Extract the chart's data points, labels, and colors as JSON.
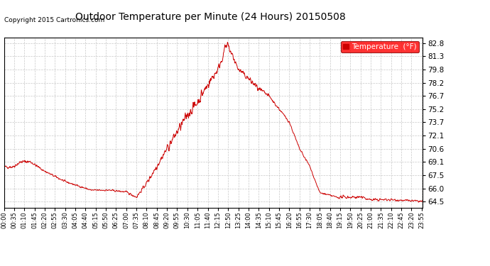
{
  "title": "Outdoor Temperature per Minute (24 Hours) 20150508",
  "copyright": "Copyright 2015 Cartronics.com",
  "legend_label": "Temperature  (°F)",
  "line_color": "#cc0000",
  "background_color": "#ffffff",
  "plot_bg_color": "#ffffff",
  "grid_color": "#c8c8c8",
  "yticks": [
    64.5,
    66.0,
    67.5,
    69.1,
    70.6,
    72.1,
    73.7,
    75.2,
    76.7,
    78.2,
    79.8,
    81.3,
    82.8
  ],
  "ymin": 63.8,
  "ymax": 83.5,
  "total_minutes": 1440,
  "xtick_interval": 35,
  "xtick_labels": [
    "00:00",
    "00:35",
    "01:10",
    "01:45",
    "02:20",
    "02:55",
    "03:30",
    "04:05",
    "04:40",
    "05:15",
    "05:50",
    "06:25",
    "07:00",
    "07:35",
    "08:10",
    "08:45",
    "09:20",
    "09:55",
    "10:30",
    "11:05",
    "11:40",
    "12:15",
    "12:50",
    "13:25",
    "14:00",
    "14:35",
    "15:10",
    "15:45",
    "16:20",
    "16:55",
    "17:30",
    "18:05",
    "18:40",
    "19:15",
    "19:50",
    "20:25",
    "21:00",
    "21:35",
    "22:10",
    "22:45",
    "23:20",
    "23:55"
  ]
}
